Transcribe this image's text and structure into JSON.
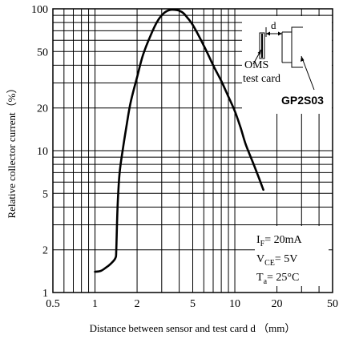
{
  "chart_data": {
    "type": "line",
    "title": "",
    "xlabel": "Distance between sensor and test card d （mm）",
    "ylabel": "Relative collector current（%）",
    "x_scale": "log",
    "y_scale": "log",
    "xlim": [
      0.5,
      50
    ],
    "ylim": [
      1,
      100
    ],
    "grid": true,
    "x_ticks": [
      0.5,
      1,
      2,
      5,
      10,
      20,
      50
    ],
    "x_tick_labels": [
      "0.5",
      "1",
      "2",
      "5",
      "10",
      "20",
      "50"
    ],
    "y_ticks": [
      1,
      2,
      5,
      10,
      20,
      50,
      100
    ],
    "y_tick_labels": [
      "1",
      "2",
      "5",
      "10",
      "20",
      "50",
      "100"
    ],
    "series": [
      {
        "x": [
          1.0,
          1.1,
          1.2,
          1.3,
          1.4,
          1.42,
          1.45,
          1.5,
          1.6,
          1.7,
          1.8,
          2.0,
          2.2,
          2.5,
          2.8,
          3.1,
          3.4,
          3.7,
          4.0,
          4.3,
          4.6,
          5.0,
          6.0,
          7.0,
          8.0,
          9.0,
          10.0,
          11.0,
          12.0,
          14.0,
          16.0
        ],
        "y": [
          1.4,
          1.42,
          1.5,
          1.6,
          1.75,
          2.0,
          4.0,
          7.0,
          11.0,
          16.0,
          22.0,
          33.0,
          47.0,
          65.0,
          82.0,
          93.0,
          98.0,
          98.5,
          97.0,
          93.0,
          86.0,
          77.0,
          55.0,
          40.0,
          31.0,
          24.0,
          19.0,
          14.5,
          11.0,
          7.5,
          5.3
        ],
        "color": "#000000"
      }
    ]
  },
  "inset": {
    "d_label": "d",
    "oms_label": "OMS",
    "card_label": "test card",
    "part_label": "GP2S03"
  },
  "conditions": {
    "if_label": "I",
    "if_sub": "F",
    "if_value": "= 20mA",
    "vce_label": "V",
    "vce_sub": "CE",
    "vce_value": "= 5V",
    "ta_label": "T",
    "ta_sub": "a",
    "ta_value": "= 25°C"
  }
}
